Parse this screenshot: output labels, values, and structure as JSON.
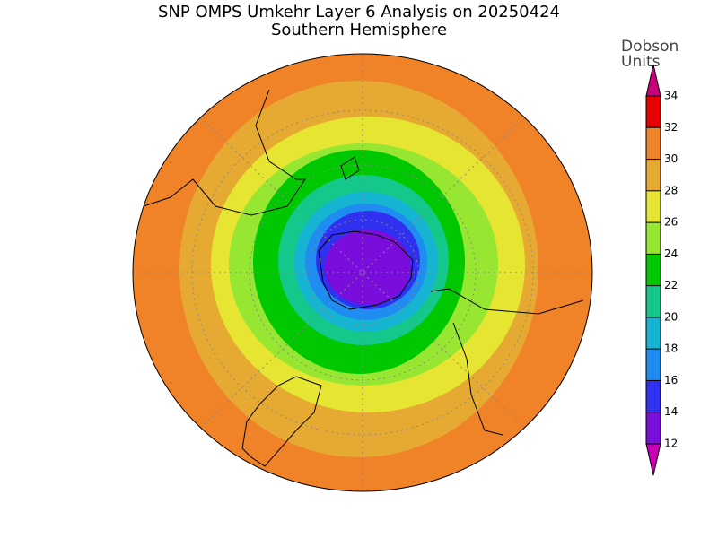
{
  "header": {
    "title": "SNP OMPS Umkehr Layer 6 Analysis on 20250424",
    "subtitle": "Southern Hemisphere"
  },
  "colorbar": {
    "title_lines": [
      "Dobson",
      "Units"
    ],
    "levels": [
      12,
      14,
      16,
      18,
      20,
      22,
      24,
      26,
      28,
      30,
      32,
      34
    ],
    "colors": [
      "#7a0ddc",
      "#3030f0",
      "#1e8cf0",
      "#14b4d2",
      "#14c88c",
      "#00c800",
      "#96e632",
      "#e6e632",
      "#e6aa32",
      "#f08228",
      "#e60000"
    ],
    "under_color": "#c800b4",
    "over_color": "#c8007a"
  }
}
